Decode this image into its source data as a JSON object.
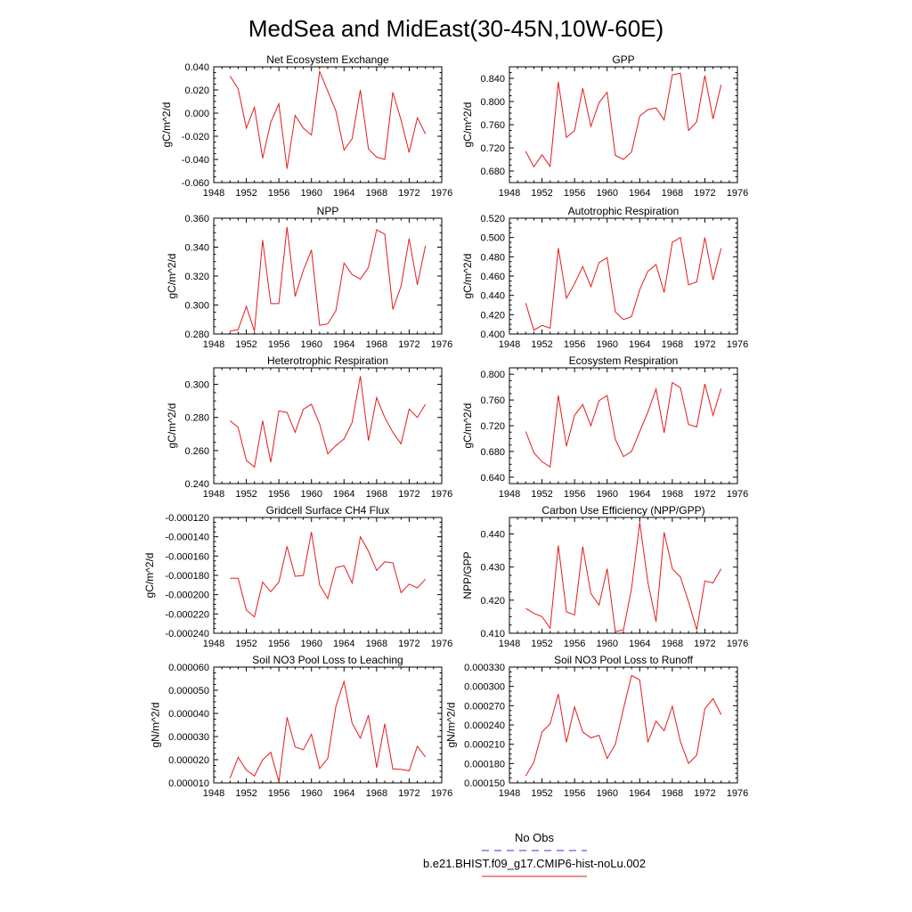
{
  "figure": {
    "title": "MedSea and MidEast(30-45N,10W-60E)"
  },
  "legend": {
    "items": [
      {
        "label": "No Obs",
        "color": "#3333cc",
        "dash": "dashed"
      },
      {
        "label": "b.e21.BHIST.f09_g17.CMIP6-hist-noLu.002",
        "color": "#e41a1c",
        "dash": "solid"
      }
    ]
  },
  "chart_data": [
    {
      "type": "line",
      "title": "Net Ecosystem Exchange",
      "ylabel": "gC/m^2/d",
      "xlim": [
        1948,
        1976
      ],
      "xticks": [
        1948,
        1952,
        1956,
        1960,
        1964,
        1968,
        1972,
        1976
      ],
      "ylim": [
        -0.06,
        0.04
      ],
      "yticks": [
        -0.06,
        -0.04,
        -0.02,
        0.0,
        0.02,
        0.04
      ],
      "ytick_labels": [
        "-0.060",
        "-0.040",
        "-0.020",
        "0.000",
        "0.020",
        "0.040"
      ],
      "x": [
        1950,
        1951,
        1952,
        1953,
        1954,
        1955,
        1956,
        1957,
        1958,
        1959,
        1960,
        1961,
        1962,
        1963,
        1964,
        1965,
        1966,
        1967,
        1968,
        1969,
        1970,
        1971,
        1972,
        1973,
        1974
      ],
      "series": [
        {
          "name": "b.e21.BHIST.f09_g17.CMIP6-hist-noLu.002",
          "color": "#e41a1c",
          "values": [
            0.032,
            0.021,
            -0.013,
            0.005,
            -0.039,
            -0.008,
            0.008,
            -0.048,
            -0.002,
            -0.013,
            -0.019,
            0.036,
            0.019,
            0.002,
            -0.032,
            -0.022,
            0.02,
            -0.031,
            -0.038,
            -0.04,
            0.018,
            -0.006,
            -0.034,
            -0.004,
            -0.018
          ]
        }
      ]
    },
    {
      "type": "line",
      "title": "GPP",
      "ylabel": "gC/m^2/d",
      "xlim": [
        1948,
        1976
      ],
      "xticks": [
        1948,
        1952,
        1956,
        1960,
        1964,
        1968,
        1972,
        1976
      ],
      "ylim": [
        0.66,
        0.86
      ],
      "yticks": [
        0.68,
        0.72,
        0.76,
        0.8,
        0.84
      ],
      "ytick_labels": [
        "0.680",
        "0.720",
        "0.760",
        "0.800",
        "0.840"
      ],
      "x": [
        1950,
        1951,
        1952,
        1953,
        1954,
        1955,
        1956,
        1957,
        1958,
        1959,
        1960,
        1961,
        1962,
        1963,
        1964,
        1965,
        1966,
        1967,
        1968,
        1969,
        1970,
        1971,
        1972,
        1973,
        1974
      ],
      "series": [
        {
          "name": "b.e21.BHIST.f09_g17.CMIP6-hist-noLu.002",
          "color": "#e41a1c",
          "values": [
            0.714,
            0.687,
            0.708,
            0.688,
            0.834,
            0.738,
            0.75,
            0.823,
            0.757,
            0.798,
            0.816,
            0.707,
            0.7,
            0.713,
            0.775,
            0.786,
            0.789,
            0.768,
            0.846,
            0.849,
            0.75,
            0.765,
            0.845,
            0.77,
            0.829
          ]
        }
      ]
    },
    {
      "type": "line",
      "title": "NPP",
      "ylabel": "gC/m^2/d",
      "xlim": [
        1948,
        1976
      ],
      "xticks": [
        1948,
        1952,
        1956,
        1960,
        1964,
        1968,
        1972,
        1976
      ],
      "ylim": [
        0.28,
        0.36
      ],
      "yticks": [
        0.28,
        0.3,
        0.32,
        0.34,
        0.36
      ],
      "ytick_labels": [
        "0.280",
        "0.300",
        "0.320",
        "0.340",
        "0.360"
      ],
      "x": [
        1950,
        1951,
        1952,
        1953,
        1954,
        1955,
        1956,
        1957,
        1958,
        1959,
        1960,
        1961,
        1962,
        1963,
        1964,
        1965,
        1966,
        1967,
        1968,
        1969,
        1970,
        1971,
        1972,
        1973,
        1974
      ],
      "series": [
        {
          "name": "b.e21.BHIST.f09_g17.CMIP6-hist-noLu.002",
          "color": "#e41a1c",
          "values": [
            0.282,
            0.283,
            0.299,
            0.282,
            0.345,
            0.301,
            0.301,
            0.354,
            0.306,
            0.324,
            0.338,
            0.286,
            0.287,
            0.296,
            0.329,
            0.321,
            0.318,
            0.326,
            0.352,
            0.349,
            0.297,
            0.313,
            0.346,
            0.314,
            0.341
          ]
        }
      ]
    },
    {
      "type": "line",
      "title": "Autotrophic Respiration",
      "ylabel": "gC/m^2/d",
      "xlim": [
        1948,
        1976
      ],
      "xticks": [
        1948,
        1952,
        1956,
        1960,
        1964,
        1968,
        1972,
        1976
      ],
      "ylim": [
        0.4,
        0.52
      ],
      "yticks": [
        0.4,
        0.42,
        0.44,
        0.46,
        0.48,
        0.5,
        0.52
      ],
      "ytick_labels": [
        "0.400",
        "0.420",
        "0.440",
        "0.460",
        "0.480",
        "0.500",
        "0.520"
      ],
      "x": [
        1950,
        1951,
        1952,
        1953,
        1954,
        1955,
        1956,
        1957,
        1958,
        1959,
        1960,
        1961,
        1962,
        1963,
        1964,
        1965,
        1966,
        1967,
        1968,
        1969,
        1970,
        1971,
        1972,
        1973,
        1974
      ],
      "series": [
        {
          "name": "b.e21.BHIST.f09_g17.CMIP6-hist-noLu.002",
          "color": "#e41a1c",
          "values": [
            0.432,
            0.404,
            0.409,
            0.406,
            0.489,
            0.437,
            0.452,
            0.47,
            0.449,
            0.474,
            0.479,
            0.423,
            0.415,
            0.418,
            0.446,
            0.465,
            0.472,
            0.443,
            0.495,
            0.5,
            0.451,
            0.454,
            0.5,
            0.456,
            0.489
          ]
        }
      ]
    },
    {
      "type": "line",
      "title": "Heterotrophic Respiration",
      "ylabel": "gC/m^2/d",
      "xlim": [
        1948,
        1976
      ],
      "xticks": [
        1948,
        1952,
        1956,
        1960,
        1964,
        1968,
        1972,
        1976
      ],
      "ylim": [
        0.24,
        0.31
      ],
      "yticks": [
        0.24,
        0.26,
        0.28,
        0.3
      ],
      "ytick_labels": [
        "0.240",
        "0.260",
        "0.280",
        "0.300"
      ],
      "x": [
        1950,
        1951,
        1952,
        1953,
        1954,
        1955,
        1956,
        1957,
        1958,
        1959,
        1960,
        1961,
        1962,
        1963,
        1964,
        1965,
        1966,
        1967,
        1968,
        1969,
        1970,
        1971,
        1972,
        1973,
        1974
      ],
      "series": [
        {
          "name": "b.e21.BHIST.f09_g17.CMIP6-hist-noLu.002",
          "color": "#e41a1c",
          "values": [
            0.278,
            0.274,
            0.254,
            0.25,
            0.278,
            0.253,
            0.284,
            0.283,
            0.271,
            0.285,
            0.288,
            0.276,
            0.258,
            0.263,
            0.267,
            0.277,
            0.305,
            0.266,
            0.292,
            0.28,
            0.271,
            0.264,
            0.285,
            0.28,
            0.288
          ]
        }
      ]
    },
    {
      "type": "line",
      "title": "Ecosystem Respiration",
      "ylabel": "gC/m^2/d",
      "xlim": [
        1948,
        1976
      ],
      "xticks": [
        1948,
        1952,
        1956,
        1960,
        1964,
        1968,
        1972,
        1976
      ],
      "ylim": [
        0.63,
        0.81
      ],
      "yticks": [
        0.64,
        0.68,
        0.72,
        0.76,
        0.8
      ],
      "ytick_labels": [
        "0.640",
        "0.680",
        "0.720",
        "0.760",
        "0.800"
      ],
      "x": [
        1950,
        1951,
        1952,
        1953,
        1954,
        1955,
        1956,
        1957,
        1958,
        1959,
        1960,
        1961,
        1962,
        1963,
        1964,
        1965,
        1966,
        1967,
        1968,
        1969,
        1970,
        1971,
        1972,
        1973,
        1974
      ],
      "series": [
        {
          "name": "b.e21.BHIST.f09_g17.CMIP6-hist-noLu.002",
          "color": "#e41a1c",
          "values": [
            0.711,
            0.678,
            0.664,
            0.656,
            0.767,
            0.688,
            0.736,
            0.753,
            0.72,
            0.759,
            0.767,
            0.699,
            0.672,
            0.68,
            0.711,
            0.741,
            0.777,
            0.709,
            0.787,
            0.779,
            0.722,
            0.718,
            0.785,
            0.736,
            0.778
          ]
        }
      ]
    },
    {
      "type": "line",
      "title": "Gridcell Surface CH4 Flux",
      "ylabel": "gC/m^2/d",
      "xlim": [
        1948,
        1976
      ],
      "xticks": [
        1948,
        1952,
        1956,
        1960,
        1964,
        1968,
        1972,
        1976
      ],
      "ylim": [
        -0.00024,
        -0.00012
      ],
      "yticks": [
        -0.00024,
        -0.00022,
        -0.0002,
        -0.00018,
        -0.00016,
        -0.00014,
        -0.00012
      ],
      "ytick_labels": [
        "-0.000240",
        "-0.000220",
        "-0.000200",
        "-0.000180",
        "-0.000160",
        "-0.000140",
        "-0.000120"
      ],
      "x": [
        1950,
        1951,
        1952,
        1953,
        1954,
        1955,
        1956,
        1957,
        1958,
        1959,
        1960,
        1961,
        1962,
        1963,
        1964,
        1965,
        1966,
        1967,
        1968,
        1969,
        1970,
        1971,
        1972,
        1973,
        1974
      ],
      "series": [
        {
          "name": "b.e21.BHIST.f09_g17.CMIP6-hist-noLu.002",
          "color": "#e41a1c",
          "values": [
            -0.000183,
            -0.000183,
            -0.000216,
            -0.000223,
            -0.000187,
            -0.000197,
            -0.000187,
            -0.00015,
            -0.000181,
            -0.00018,
            -0.000135,
            -0.00019,
            -0.000204,
            -0.000172,
            -0.00017,
            -0.000188,
            -0.00014,
            -0.000155,
            -0.000175,
            -0.000166,
            -0.000167,
            -0.000198,
            -0.000189,
            -0.000193,
            -0.000184
          ]
        }
      ]
    },
    {
      "type": "line",
      "title": "Carbon Use Efficiency (NPP/GPP)",
      "ylabel": "NPP/GPP",
      "xlim": [
        1948,
        1976
      ],
      "xticks": [
        1948,
        1952,
        1956,
        1960,
        1964,
        1968,
        1972,
        1976
      ],
      "ylim": [
        0.41,
        0.445
      ],
      "yticks": [
        0.41,
        0.42,
        0.43,
        0.44
      ],
      "ytick_labels": [
        "0.410",
        "0.420",
        "0.430",
        "0.440"
      ],
      "x": [
        1950,
        1951,
        1952,
        1953,
        1954,
        1955,
        1956,
        1957,
        1958,
        1959,
        1960,
        1961,
        1962,
        1963,
        1964,
        1965,
        1966,
        1967,
        1968,
        1969,
        1970,
        1971,
        1972,
        1973,
        1974
      ],
      "series": [
        {
          "name": "b.e21.BHIST.f09_g17.CMIP6-hist-noLu.002",
          "color": "#e41a1c",
          "values": [
            0.4175,
            0.416,
            0.415,
            0.4115,
            0.4365,
            0.4165,
            0.4155,
            0.4362,
            0.422,
            0.4185,
            0.4295,
            0.4105,
            0.411,
            0.4235,
            0.4435,
            0.4255,
            0.4135,
            0.4405,
            0.4295,
            0.427,
            0.4195,
            0.411,
            0.4258,
            0.4252,
            0.4295
          ]
        }
      ]
    },
    {
      "type": "line",
      "title": "Soil NO3 Pool Loss to Leaching",
      "ylabel": "gN/m^2/d",
      "xlim": [
        1948,
        1976
      ],
      "xticks": [
        1948,
        1952,
        1956,
        1960,
        1964,
        1968,
        1972,
        1976
      ],
      "ylim": [
        1e-05,
        6e-05
      ],
      "yticks": [
        1e-05,
        2e-05,
        3e-05,
        4e-05,
        5e-05,
        6e-05
      ],
      "ytick_labels": [
        "0.000010",
        "0.000020",
        "0.000030",
        "0.000040",
        "0.000050",
        "0.000060"
      ],
      "x": [
        1950,
        1951,
        1952,
        1953,
        1954,
        1955,
        1956,
        1957,
        1958,
        1959,
        1960,
        1961,
        1962,
        1963,
        1964,
        1965,
        1966,
        1967,
        1968,
        1969,
        1970,
        1971,
        1972,
        1973,
        1974
      ],
      "series": [
        {
          "name": "b.e21.BHIST.f09_g17.CMIP6-hist-noLu.002",
          "color": "#e41a1c",
          "values": [
            1.2e-05,
            2.1e-05,
            1.55e-05,
            1.3e-05,
            2e-05,
            2.32e-05,
            1.05e-05,
            3.83e-05,
            2.55e-05,
            2.43e-05,
            3.1e-05,
            1.62e-05,
            2.05e-05,
            4.3e-05,
            5.38e-05,
            3.57e-05,
            2.93e-05,
            3.92e-05,
            1.65e-05,
            3.55e-05,
            1.6e-05,
            1.58e-05,
            1.52e-05,
            2.58e-05,
            2.12e-05
          ]
        }
      ]
    },
    {
      "type": "line",
      "title": "Soil NO3 Pool Loss to Runoff",
      "ylabel": "gN/m^2/d",
      "xlim": [
        1948,
        1976
      ],
      "xticks": [
        1948,
        1952,
        1956,
        1960,
        1964,
        1968,
        1972,
        1976
      ],
      "ylim": [
        0.00015,
        0.00033
      ],
      "yticks": [
        0.00015,
        0.00018,
        0.00021,
        0.00024,
        0.00027,
        0.0003,
        0.00033
      ],
      "ytick_labels": [
        "0.000150",
        "0.000180",
        "0.000210",
        "0.000240",
        "0.000270",
        "0.000300",
        "0.000330"
      ],
      "x": [
        1950,
        1951,
        1952,
        1953,
        1954,
        1955,
        1956,
        1957,
        1958,
        1959,
        1960,
        1961,
        1962,
        1963,
        1964,
        1965,
        1966,
        1967,
        1968,
        1969,
        1970,
        1971,
        1972,
        1973,
        1974
      ],
      "series": [
        {
          "name": "b.e21.BHIST.f09_g17.CMIP6-hist-noLu.002",
          "color": "#e41a1c",
          "values": [
            0.000161,
            0.000182,
            0.000229,
            0.000242,
            0.000288,
            0.000213,
            0.000268,
            0.000229,
            0.00022,
            0.000224,
            0.000188,
            0.00021,
            0.000265,
            0.000317,
            0.00031,
            0.000213,
            0.000246,
            0.000231,
            0.000269,
            0.000214,
            0.00018,
            0.000193,
            0.000265,
            0.000281,
            0.000256
          ]
        }
      ]
    }
  ]
}
